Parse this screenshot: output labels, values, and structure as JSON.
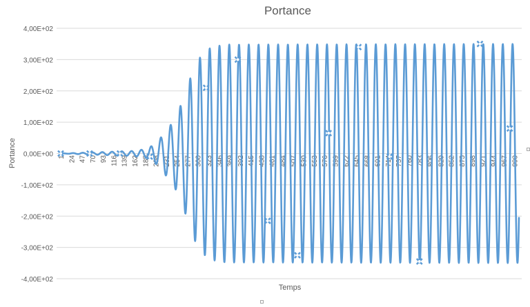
{
  "chart_data": {
    "type": "line",
    "title": "Portance",
    "xlabel": "Temps",
    "ylabel": "Portance",
    "ylim": [
      -400,
      400
    ],
    "y_ticks": [
      400,
      300,
      200,
      100,
      0,
      -100,
      -200,
      -300,
      -400
    ],
    "y_tick_labels": [
      "4,00E+02",
      "3,00E+02",
      "2,00E+02",
      "1,00E+02",
      "0,00E+00",
      "-1,00E+02",
      "-2,00E+02",
      "-3,00E+02",
      "-4,00E+02"
    ],
    "x_range": [
      1,
      1000
    ],
    "x_tick_labels": [
      "1",
      "24",
      "47",
      "70",
      "93",
      "116",
      "139",
      "162",
      "185",
      "208",
      "231",
      "254",
      "277",
      "300",
      "323",
      "346",
      "369",
      "392",
      "415",
      "438",
      "461",
      "484",
      "507",
      "530",
      "553",
      "576",
      "599",
      "622",
      "645",
      "668",
      "691",
      "714",
      "737",
      "760",
      "783",
      "806",
      "829",
      "852",
      "875",
      "898",
      "921",
      "944",
      "967",
      "990"
    ],
    "gridlines": "horizontal",
    "legend": "none",
    "line_color": "#5b9bd5",
    "series": [
      {
        "period": 21.3,
        "envelope": [
          {
            "x": 1,
            "amp": 0
          },
          {
            "x": 60,
            "amp": 3
          },
          {
            "x": 120,
            "amp": 6
          },
          {
            "x": 160,
            "amp": 8
          },
          {
            "x": 190,
            "amp": 15
          },
          {
            "x": 210,
            "amp": 35
          },
          {
            "x": 230,
            "amp": 70
          },
          {
            "x": 250,
            "amp": 110
          },
          {
            "x": 270,
            "amp": 180
          },
          {
            "x": 290,
            "amp": 270
          },
          {
            "x": 310,
            "amp": 320
          },
          {
            "x": 330,
            "amp": 340
          },
          {
            "x": 360,
            "amp": 348
          },
          {
            "x": 1000,
            "amp": 350
          }
        ],
        "markers": [
          {
            "x": 1,
            "y": 0
          },
          {
            "x": 64,
            "y": 0
          },
          {
            "x": 130,
            "y": 0
          },
          {
            "x": 195,
            "y": -10
          },
          {
            "x": 318,
            "y": 210
          },
          {
            "x": 387,
            "y": 300
          },
          {
            "x": 452,
            "y": -215
          },
          {
            "x": 517,
            "y": -325
          },
          {
            "x": 585,
            "y": 65
          },
          {
            "x": 650,
            "y": 340
          },
          {
            "x": 718,
            "y": -10
          },
          {
            "x": 783,
            "y": -345
          },
          {
            "x": 915,
            "y": 350
          },
          {
            "x": 980,
            "y": 80
          }
        ]
      }
    ]
  }
}
